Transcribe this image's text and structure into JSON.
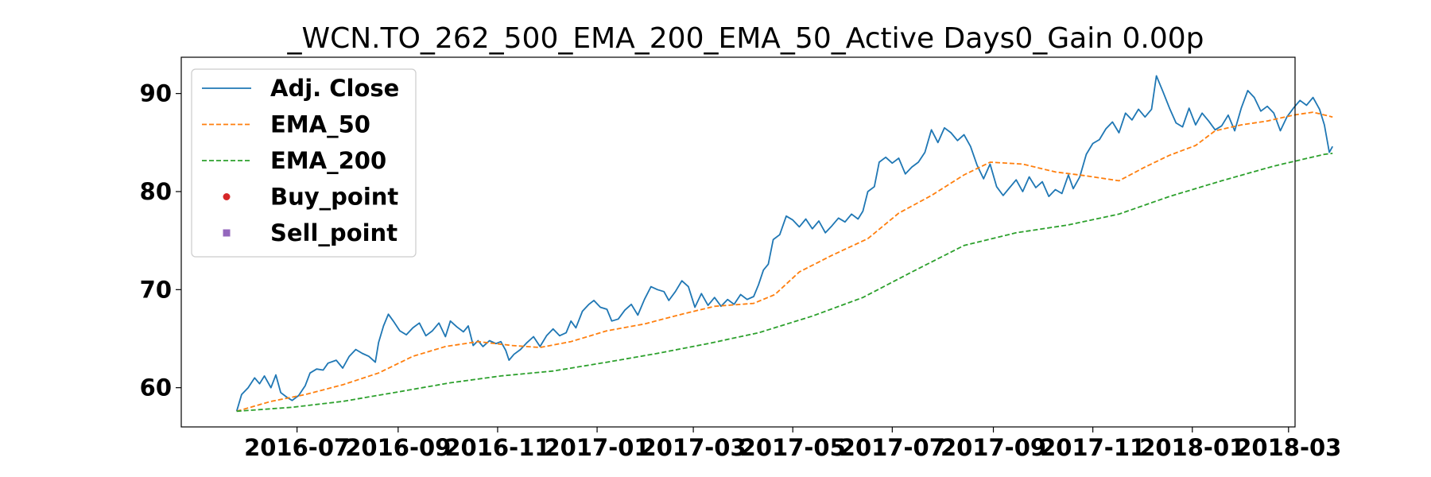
{
  "chart_data": {
    "type": "line",
    "title": "_WCN.TO_262_500_EMA_200_EMA_50_Active Days0_Gain   0.00p",
    "xlabel": "",
    "ylabel": "",
    "xlim": [
      "2016-04-21",
      "2018-03-05"
    ],
    "ylim": [
      56.0,
      93.7
    ],
    "x_ticks": [
      "2016-07",
      "2016-09",
      "2016-11",
      "2017-01",
      "2017-03",
      "2017-05",
      "2017-07",
      "2017-09",
      "2017-11",
      "2018-01",
      "2018-03"
    ],
    "y_ticks": [
      60,
      70,
      80,
      90
    ],
    "grid": false,
    "legend_position": "upper-left",
    "series": [
      {
        "name": "Adj. Close",
        "color": "#1f77b4",
        "style": "solid",
        "points": [
          [
            "2016-05-25",
            57.6
          ],
          [
            "2016-05-28",
            59.3
          ],
          [
            "2016-06-01",
            60.0
          ],
          [
            "2016-06-05",
            61.0
          ],
          [
            "2016-06-08",
            60.4
          ],
          [
            "2016-06-11",
            61.2
          ],
          [
            "2016-06-15",
            60.0
          ],
          [
            "2016-06-18",
            61.3
          ],
          [
            "2016-06-21",
            59.5
          ],
          [
            "2016-06-25",
            59.0
          ],
          [
            "2016-06-28",
            58.7
          ],
          [
            "2016-07-02",
            59.2
          ],
          [
            "2016-07-06",
            60.2
          ],
          [
            "2016-07-09",
            61.5
          ],
          [
            "2016-07-13",
            61.9
          ],
          [
            "2016-07-17",
            61.8
          ],
          [
            "2016-07-20",
            62.5
          ],
          [
            "2016-07-25",
            62.8
          ],
          [
            "2016-07-29",
            62.0
          ],
          [
            "2016-08-02",
            63.2
          ],
          [
            "2016-08-06",
            63.9
          ],
          [
            "2016-08-10",
            63.5
          ],
          [
            "2016-08-14",
            63.2
          ],
          [
            "2016-08-18",
            62.6
          ],
          [
            "2016-08-20",
            64.6
          ],
          [
            "2016-08-23",
            66.3
          ],
          [
            "2016-08-26",
            67.5
          ],
          [
            "2016-08-29",
            66.8
          ],
          [
            "2016-09-02",
            65.8
          ],
          [
            "2016-09-06",
            65.4
          ],
          [
            "2016-09-10",
            66.1
          ],
          [
            "2016-09-14",
            66.6
          ],
          [
            "2016-09-18",
            65.3
          ],
          [
            "2016-09-22",
            65.8
          ],
          [
            "2016-09-26",
            66.6
          ],
          [
            "2016-09-30",
            65.2
          ],
          [
            "2016-10-03",
            66.8
          ],
          [
            "2016-10-07",
            66.2
          ],
          [
            "2016-10-11",
            65.7
          ],
          [
            "2016-10-14",
            66.3
          ],
          [
            "2016-10-17",
            64.3
          ],
          [
            "2016-10-20",
            64.8
          ],
          [
            "2016-10-23",
            64.2
          ],
          [
            "2016-10-27",
            64.8
          ],
          [
            "2016-10-31",
            64.5
          ],
          [
            "2016-11-03",
            64.7
          ],
          [
            "2016-11-06",
            63.8
          ],
          [
            "2016-11-08",
            62.8
          ],
          [
            "2016-11-11",
            63.4
          ],
          [
            "2016-11-15",
            63.9
          ],
          [
            "2016-11-19",
            64.6
          ],
          [
            "2016-11-23",
            65.2
          ],
          [
            "2016-11-27",
            64.2
          ],
          [
            "2016-12-01",
            65.3
          ],
          [
            "2016-12-05",
            66.0
          ],
          [
            "2016-12-09",
            65.3
          ],
          [
            "2016-12-13",
            65.6
          ],
          [
            "2016-12-16",
            66.8
          ],
          [
            "2016-12-19",
            66.1
          ],
          [
            "2016-12-23",
            67.8
          ],
          [
            "2016-12-27",
            68.5
          ],
          [
            "2016-12-30",
            68.9
          ],
          [
            "2017-01-03",
            68.2
          ],
          [
            "2017-01-07",
            68.0
          ],
          [
            "2017-01-10",
            66.8
          ],
          [
            "2017-01-14",
            67.0
          ],
          [
            "2017-01-18",
            67.9
          ],
          [
            "2017-01-22",
            68.5
          ],
          [
            "2017-01-26",
            67.4
          ],
          [
            "2017-01-30",
            69.0
          ],
          [
            "2017-02-03",
            70.3
          ],
          [
            "2017-02-07",
            70.0
          ],
          [
            "2017-02-11",
            69.8
          ],
          [
            "2017-02-14",
            68.9
          ],
          [
            "2017-02-18",
            69.8
          ],
          [
            "2017-02-22",
            70.9
          ],
          [
            "2017-02-26",
            70.3
          ],
          [
            "2017-03-02",
            68.2
          ],
          [
            "2017-03-06",
            69.6
          ],
          [
            "2017-03-10",
            68.4
          ],
          [
            "2017-03-14",
            69.2
          ],
          [
            "2017-03-18",
            68.3
          ],
          [
            "2017-03-22",
            69.0
          ],
          [
            "2017-03-26",
            68.5
          ],
          [
            "2017-03-30",
            69.5
          ],
          [
            "2017-04-03",
            69.0
          ],
          [
            "2017-04-07",
            69.3
          ],
          [
            "2017-04-10",
            70.5
          ],
          [
            "2017-04-13",
            72.0
          ],
          [
            "2017-04-16",
            72.6
          ],
          [
            "2017-04-19",
            75.1
          ],
          [
            "2017-04-23",
            75.6
          ],
          [
            "2017-04-27",
            77.5
          ],
          [
            "2017-05-01",
            77.1
          ],
          [
            "2017-05-05",
            76.4
          ],
          [
            "2017-05-09",
            77.2
          ],
          [
            "2017-05-13",
            76.2
          ],
          [
            "2017-05-17",
            77.0
          ],
          [
            "2017-05-21",
            75.8
          ],
          [
            "2017-05-25",
            76.5
          ],
          [
            "2017-05-29",
            77.3
          ],
          [
            "2017-06-02",
            76.9
          ],
          [
            "2017-06-06",
            77.7
          ],
          [
            "2017-06-10",
            77.2
          ],
          [
            "2017-06-13",
            78.0
          ],
          [
            "2017-06-16",
            80.0
          ],
          [
            "2017-06-20",
            80.5
          ],
          [
            "2017-06-23",
            83.0
          ],
          [
            "2017-06-27",
            83.5
          ],
          [
            "2017-07-01",
            82.9
          ],
          [
            "2017-07-05",
            83.4
          ],
          [
            "2017-07-09",
            81.8
          ],
          [
            "2017-07-13",
            82.5
          ],
          [
            "2017-07-17",
            83.0
          ],
          [
            "2017-07-21",
            84.0
          ],
          [
            "2017-07-25",
            86.3
          ],
          [
            "2017-07-29",
            85.0
          ],
          [
            "2017-08-02",
            86.5
          ],
          [
            "2017-08-06",
            86.0
          ],
          [
            "2017-08-10",
            85.2
          ],
          [
            "2017-08-14",
            85.8
          ],
          [
            "2017-08-18",
            84.6
          ],
          [
            "2017-08-22",
            82.7
          ],
          [
            "2017-08-26",
            81.3
          ],
          [
            "2017-08-30",
            82.8
          ],
          [
            "2017-09-03",
            80.5
          ],
          [
            "2017-09-07",
            79.6
          ],
          [
            "2017-09-11",
            80.4
          ],
          [
            "2017-09-15",
            81.2
          ],
          [
            "2017-09-19",
            80.0
          ],
          [
            "2017-09-23",
            81.5
          ],
          [
            "2017-09-27",
            80.4
          ],
          [
            "2017-10-01",
            81.0
          ],
          [
            "2017-10-05",
            79.5
          ],
          [
            "2017-10-09",
            80.2
          ],
          [
            "2017-10-13",
            79.8
          ],
          [
            "2017-10-17",
            81.7
          ],
          [
            "2017-10-20",
            80.3
          ],
          [
            "2017-10-24",
            81.5
          ],
          [
            "2017-10-28",
            83.8
          ],
          [
            "2017-11-01",
            84.9
          ],
          [
            "2017-11-05",
            85.3
          ],
          [
            "2017-11-09",
            86.4
          ],
          [
            "2017-11-13",
            87.1
          ],
          [
            "2017-11-17",
            86.0
          ],
          [
            "2017-11-21",
            88.0
          ],
          [
            "2017-11-25",
            87.3
          ],
          [
            "2017-11-29",
            88.4
          ],
          [
            "2017-12-03",
            87.6
          ],
          [
            "2017-12-07",
            88.4
          ],
          [
            "2017-12-10",
            91.8
          ],
          [
            "2017-12-14",
            90.2
          ],
          [
            "2017-12-18",
            88.5
          ],
          [
            "2017-12-22",
            87.0
          ],
          [
            "2017-12-26",
            86.6
          ],
          [
            "2017-12-30",
            88.5
          ],
          [
            "2018-01-03",
            86.8
          ],
          [
            "2018-01-07",
            88.0
          ],
          [
            "2018-01-11",
            87.2
          ],
          [
            "2018-01-15",
            86.3
          ],
          [
            "2018-01-19",
            86.7
          ],
          [
            "2018-01-23",
            87.8
          ],
          [
            "2018-01-27",
            86.2
          ],
          [
            "2018-01-31",
            88.5
          ],
          [
            "2018-02-04",
            90.3
          ],
          [
            "2018-02-08",
            89.6
          ],
          [
            "2018-02-12",
            88.2
          ],
          [
            "2018-02-16",
            88.7
          ],
          [
            "2018-02-20",
            88.0
          ],
          [
            "2018-02-24",
            86.2
          ],
          [
            "2018-02-28",
            87.6
          ],
          [
            "2018-03-04",
            88.5
          ],
          [
            "2018-03-08",
            89.3
          ],
          [
            "2018-03-12",
            88.8
          ],
          [
            "2018-03-16",
            89.6
          ],
          [
            "2018-03-20",
            88.4
          ],
          [
            "2018-03-23",
            86.8
          ],
          [
            "2018-03-26",
            84.0
          ],
          [
            "2018-03-28",
            84.6
          ]
        ]
      },
      {
        "name": "EMA_50",
        "color": "#ff7f0e",
        "style": "dashed",
        "points": [
          [
            "2016-05-25",
            57.6
          ],
          [
            "2016-06-15",
            58.6
          ],
          [
            "2016-07-06",
            59.3
          ],
          [
            "2016-07-29",
            60.3
          ],
          [
            "2016-08-20",
            61.5
          ],
          [
            "2016-09-10",
            63.2
          ],
          [
            "2016-09-30",
            64.2
          ],
          [
            "2016-10-20",
            64.7
          ],
          [
            "2016-11-10",
            64.3
          ],
          [
            "2016-11-27",
            64.1
          ],
          [
            "2016-12-16",
            64.7
          ],
          [
            "2017-01-07",
            65.8
          ],
          [
            "2017-01-30",
            66.5
          ],
          [
            "2017-02-22",
            67.5
          ],
          [
            "2017-03-14",
            68.3
          ],
          [
            "2017-04-07",
            68.6
          ],
          [
            "2017-04-20",
            69.5
          ],
          [
            "2017-05-05",
            71.8
          ],
          [
            "2017-05-25",
            73.5
          ],
          [
            "2017-06-16",
            75.2
          ],
          [
            "2017-07-05",
            77.8
          ],
          [
            "2017-07-25",
            79.6
          ],
          [
            "2017-08-14",
            81.7
          ],
          [
            "2017-08-30",
            83.0
          ],
          [
            "2017-09-19",
            82.8
          ],
          [
            "2017-10-09",
            82.0
          ],
          [
            "2017-10-28",
            81.6
          ],
          [
            "2017-11-17",
            81.1
          ],
          [
            "2017-12-03",
            82.5
          ],
          [
            "2017-12-18",
            83.7
          ],
          [
            "2018-01-03",
            84.7
          ],
          [
            "2018-01-15",
            86.2
          ],
          [
            "2018-01-31",
            86.8
          ],
          [
            "2018-02-16",
            87.2
          ],
          [
            "2018-03-04",
            87.8
          ],
          [
            "2018-03-16",
            88.1
          ],
          [
            "2018-03-28",
            87.6
          ]
        ]
      },
      {
        "name": "EMA_200",
        "color": "#2ca02c",
        "style": "dashed",
        "points": [
          [
            "2016-05-25",
            57.6
          ],
          [
            "2016-06-28",
            58.0
          ],
          [
            "2016-07-29",
            58.6
          ],
          [
            "2016-09-02",
            59.6
          ],
          [
            "2016-10-03",
            60.5
          ],
          [
            "2016-11-03",
            61.2
          ],
          [
            "2016-12-05",
            61.7
          ],
          [
            "2017-01-07",
            62.6
          ],
          [
            "2017-02-07",
            63.5
          ],
          [
            "2017-03-10",
            64.5
          ],
          [
            "2017-04-10",
            65.6
          ],
          [
            "2017-05-13",
            67.3
          ],
          [
            "2017-06-13",
            69.2
          ],
          [
            "2017-07-13",
            71.8
          ],
          [
            "2017-08-14",
            74.5
          ],
          [
            "2017-09-15",
            75.8
          ],
          [
            "2017-10-17",
            76.6
          ],
          [
            "2017-11-17",
            77.7
          ],
          [
            "2017-12-18",
            79.5
          ],
          [
            "2018-01-19",
            81.1
          ],
          [
            "2018-02-20",
            82.6
          ],
          [
            "2018-03-23",
            83.8
          ],
          [
            "2018-03-28",
            83.9
          ]
        ]
      },
      {
        "name": "Buy_point",
        "color": "#d62728",
        "style": "marker-circle",
        "points": []
      },
      {
        "name": "Sell_point",
        "color": "#9467bd",
        "style": "marker-square",
        "points": []
      }
    ]
  }
}
